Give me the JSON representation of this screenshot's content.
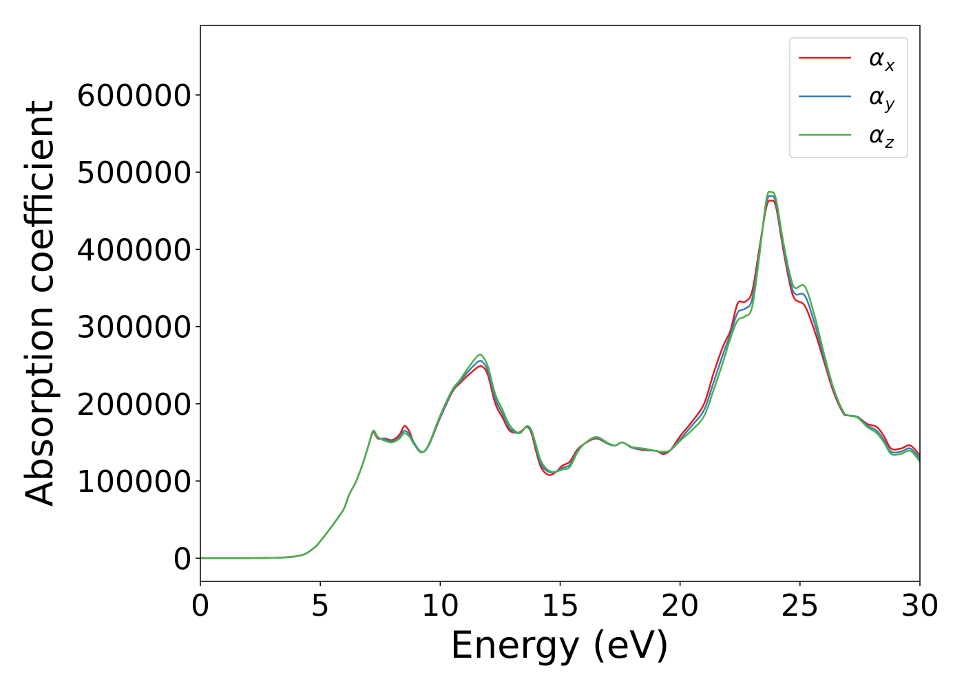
{
  "chart_data": {
    "type": "line",
    "title": "",
    "xlabel": "Energy (eV)",
    "ylabel": "Absorption coefficient",
    "xlim": [
      0,
      30
    ],
    "ylim": [
      -30000,
      690000
    ],
    "x_ticks": [
      "0",
      "5",
      "10",
      "15",
      "20",
      "25",
      "30"
    ],
    "y_ticks": [
      "0",
      "100000",
      "200000",
      "300000",
      "400000",
      "500000",
      "600000"
    ],
    "grid": false,
    "legend_position": "top-right",
    "series": [
      {
        "name": "αx",
        "legend_base": "α",
        "legend_sub": "x",
        "color": "#e41a1c",
        "points": [
          [
            0,
            0
          ],
          [
            1,
            0
          ],
          [
            2,
            0
          ],
          [
            3,
            500
          ],
          [
            3.5,
            1000
          ],
          [
            4,
            2500
          ],
          [
            4.4,
            6000
          ],
          [
            4.8,
            15000
          ],
          [
            5.0,
            22000
          ],
          [
            5.4,
            38000
          ],
          [
            5.8,
            55000
          ],
          [
            6.0,
            65000
          ],
          [
            6.2,
            82000
          ],
          [
            6.5,
            100000
          ],
          [
            6.8,
            125000
          ],
          [
            7.0,
            145000
          ],
          [
            7.2,
            163000
          ],
          [
            7.4,
            155000
          ],
          [
            7.7,
            155000
          ],
          [
            8.0,
            153000
          ],
          [
            8.3,
            160000
          ],
          [
            8.5,
            171000
          ],
          [
            8.7,
            165000
          ],
          [
            8.9,
            150000
          ],
          [
            9.2,
            138000
          ],
          [
            9.5,
            145000
          ],
          [
            10.0,
            182000
          ],
          [
            10.5,
            215000
          ],
          [
            10.8,
            226000
          ],
          [
            11.2,
            238000
          ],
          [
            11.6,
            248000
          ],
          [
            11.8,
            247000
          ],
          [
            12.0,
            236000
          ],
          [
            12.3,
            200000
          ],
          [
            12.6,
            182000
          ],
          [
            12.9,
            165000
          ],
          [
            13.3,
            163000
          ],
          [
            13.6,
            170000
          ],
          [
            13.8,
            162000
          ],
          [
            14.0,
            138000
          ],
          [
            14.2,
            118000
          ],
          [
            14.5,
            108000
          ],
          [
            14.8,
            111000
          ],
          [
            15.1,
            120000
          ],
          [
            15.4,
            125000
          ],
          [
            15.7,
            140000
          ],
          [
            16.0,
            148000
          ],
          [
            16.5,
            155000
          ],
          [
            17.0,
            148000
          ],
          [
            17.3,
            146000
          ],
          [
            17.6,
            150000
          ],
          [
            18.0,
            143000
          ],
          [
            18.5,
            140000
          ],
          [
            19.0,
            139000
          ],
          [
            19.3,
            135000
          ],
          [
            19.6,
            140000
          ],
          [
            20.0,
            158000
          ],
          [
            20.5,
            177000
          ],
          [
            21.0,
            200000
          ],
          [
            21.4,
            240000
          ],
          [
            21.8,
            275000
          ],
          [
            22.1,
            295000
          ],
          [
            22.4,
            330000
          ],
          [
            22.7,
            332000
          ],
          [
            23.0,
            345000
          ],
          [
            23.3,
            400000
          ],
          [
            23.6,
            455000
          ],
          [
            23.8,
            463000
          ],
          [
            24.0,
            455000
          ],
          [
            24.3,
            400000
          ],
          [
            24.6,
            352000
          ],
          [
            24.8,
            335000
          ],
          [
            25.2,
            327000
          ],
          [
            25.6,
            295000
          ],
          [
            26.0,
            255000
          ],
          [
            26.4,
            215000
          ],
          [
            26.8,
            188000
          ],
          [
            27.0,
            185000
          ],
          [
            27.4,
            183000
          ],
          [
            27.8,
            174000
          ],
          [
            28.2,
            170000
          ],
          [
            28.5,
            158000
          ],
          [
            28.8,
            142000
          ],
          [
            29.2,
            142000
          ],
          [
            29.6,
            146000
          ],
          [
            30.0,
            133000
          ]
        ]
      },
      {
        "name": "αy",
        "legend_base": "α",
        "legend_sub": "y",
        "color": "#377eb8",
        "points": [
          [
            0,
            0
          ],
          [
            1,
            0
          ],
          [
            2,
            0
          ],
          [
            3,
            500
          ],
          [
            3.5,
            1000
          ],
          [
            4,
            2500
          ],
          [
            4.4,
            6000
          ],
          [
            4.8,
            15000
          ],
          [
            5.0,
            22000
          ],
          [
            5.4,
            38000
          ],
          [
            5.8,
            55000
          ],
          [
            6.0,
            65000
          ],
          [
            6.2,
            82000
          ],
          [
            6.5,
            100000
          ],
          [
            6.8,
            125000
          ],
          [
            7.0,
            145000
          ],
          [
            7.2,
            164000
          ],
          [
            7.4,
            156000
          ],
          [
            7.7,
            154000
          ],
          [
            8.0,
            151000
          ],
          [
            8.3,
            157000
          ],
          [
            8.5,
            165000
          ],
          [
            8.7,
            161000
          ],
          [
            8.9,
            150000
          ],
          [
            9.2,
            138000
          ],
          [
            9.5,
            145000
          ],
          [
            10.0,
            183000
          ],
          [
            10.5,
            216000
          ],
          [
            10.8,
            228000
          ],
          [
            11.2,
            243000
          ],
          [
            11.6,
            255000
          ],
          [
            11.8,
            253000
          ],
          [
            12.0,
            241000
          ],
          [
            12.3,
            206000
          ],
          [
            12.6,
            187000
          ],
          [
            12.9,
            168000
          ],
          [
            13.3,
            162000
          ],
          [
            13.6,
            170000
          ],
          [
            13.8,
            164000
          ],
          [
            14.0,
            142000
          ],
          [
            14.2,
            122000
          ],
          [
            14.5,
            112000
          ],
          [
            14.8,
            112000
          ],
          [
            15.1,
            117000
          ],
          [
            15.4,
            121000
          ],
          [
            15.7,
            138000
          ],
          [
            16.0,
            148000
          ],
          [
            16.5,
            156000
          ],
          [
            17.0,
            148000
          ],
          [
            17.3,
            146000
          ],
          [
            17.6,
            150000
          ],
          [
            18.0,
            143000
          ],
          [
            18.5,
            141000
          ],
          [
            19.0,
            139000
          ],
          [
            19.3,
            137000
          ],
          [
            19.6,
            140000
          ],
          [
            20.0,
            154000
          ],
          [
            20.5,
            172000
          ],
          [
            21.0,
            192000
          ],
          [
            21.4,
            228000
          ],
          [
            21.8,
            265000
          ],
          [
            22.1,
            290000
          ],
          [
            22.4,
            318000
          ],
          [
            22.7,
            323000
          ],
          [
            23.0,
            335000
          ],
          [
            23.3,
            395000
          ],
          [
            23.6,
            460000
          ],
          [
            23.8,
            469000
          ],
          [
            24.0,
            460000
          ],
          [
            24.3,
            405000
          ],
          [
            24.6,
            358000
          ],
          [
            24.8,
            342000
          ],
          [
            25.2,
            340000
          ],
          [
            25.6,
            305000
          ],
          [
            26.0,
            260000
          ],
          [
            26.4,
            218000
          ],
          [
            26.8,
            189000
          ],
          [
            27.0,
            185000
          ],
          [
            27.4,
            183000
          ],
          [
            27.8,
            172000
          ],
          [
            28.2,
            165000
          ],
          [
            28.5,
            153000
          ],
          [
            28.8,
            138000
          ],
          [
            29.2,
            138000
          ],
          [
            29.6,
            142000
          ],
          [
            30.0,
            129000
          ]
        ]
      },
      {
        "name": "αz",
        "legend_base": "α",
        "legend_sub": "z",
        "color": "#4daf4a",
        "points": [
          [
            0,
            0
          ],
          [
            1,
            0
          ],
          [
            2,
            0
          ],
          [
            3,
            500
          ],
          [
            3.5,
            1000
          ],
          [
            4,
            2500
          ],
          [
            4.4,
            6000
          ],
          [
            4.8,
            15000
          ],
          [
            5.0,
            22000
          ],
          [
            5.4,
            38000
          ],
          [
            5.8,
            55000
          ],
          [
            6.0,
            65000
          ],
          [
            6.2,
            82000
          ],
          [
            6.5,
            100000
          ],
          [
            6.8,
            125000
          ],
          [
            7.0,
            145000
          ],
          [
            7.2,
            165000
          ],
          [
            7.4,
            157000
          ],
          [
            7.7,
            152000
          ],
          [
            8.0,
            150000
          ],
          [
            8.3,
            155000
          ],
          [
            8.5,
            162000
          ],
          [
            8.7,
            158000
          ],
          [
            8.9,
            148000
          ],
          [
            9.2,
            137000
          ],
          [
            9.5,
            146000
          ],
          [
            10.0,
            185000
          ],
          [
            10.5,
            218000
          ],
          [
            10.8,
            230000
          ],
          [
            11.2,
            248000
          ],
          [
            11.6,
            263000
          ],
          [
            11.8,
            260000
          ],
          [
            12.0,
            247000
          ],
          [
            12.3,
            212000
          ],
          [
            12.6,
            192000
          ],
          [
            12.9,
            172000
          ],
          [
            13.3,
            162000
          ],
          [
            13.6,
            171000
          ],
          [
            13.8,
            166000
          ],
          [
            14.0,
            146000
          ],
          [
            14.2,
            126000
          ],
          [
            14.5,
            114000
          ],
          [
            14.8,
            112000
          ],
          [
            15.1,
            115000
          ],
          [
            15.4,
            118000
          ],
          [
            15.7,
            136000
          ],
          [
            16.0,
            148000
          ],
          [
            16.5,
            157000
          ],
          [
            17.0,
            149000
          ],
          [
            17.3,
            146000
          ],
          [
            17.6,
            150000
          ],
          [
            18.0,
            144000
          ],
          [
            18.5,
            142000
          ],
          [
            19.0,
            139000
          ],
          [
            19.3,
            138000
          ],
          [
            19.6,
            140000
          ],
          [
            20.0,
            152000
          ],
          [
            20.5,
            166000
          ],
          [
            21.0,
            184000
          ],
          [
            21.4,
            218000
          ],
          [
            21.8,
            255000
          ],
          [
            22.1,
            285000
          ],
          [
            22.4,
            308000
          ],
          [
            22.7,
            313000
          ],
          [
            23.0,
            325000
          ],
          [
            23.3,
            390000
          ],
          [
            23.6,
            465000
          ],
          [
            23.8,
            474000
          ],
          [
            24.0,
            465000
          ],
          [
            24.3,
            410000
          ],
          [
            24.6,
            365000
          ],
          [
            24.8,
            350000
          ],
          [
            25.2,
            352000
          ],
          [
            25.6,
            315000
          ],
          [
            26.0,
            265000
          ],
          [
            26.4,
            220000
          ],
          [
            26.8,
            190000
          ],
          [
            27.0,
            185000
          ],
          [
            27.4,
            182000
          ],
          [
            27.8,
            170000
          ],
          [
            28.2,
            162000
          ],
          [
            28.5,
            150000
          ],
          [
            28.8,
            135000
          ],
          [
            29.2,
            135000
          ],
          [
            29.6,
            139000
          ],
          [
            30.0,
            125000
          ]
        ]
      }
    ]
  }
}
